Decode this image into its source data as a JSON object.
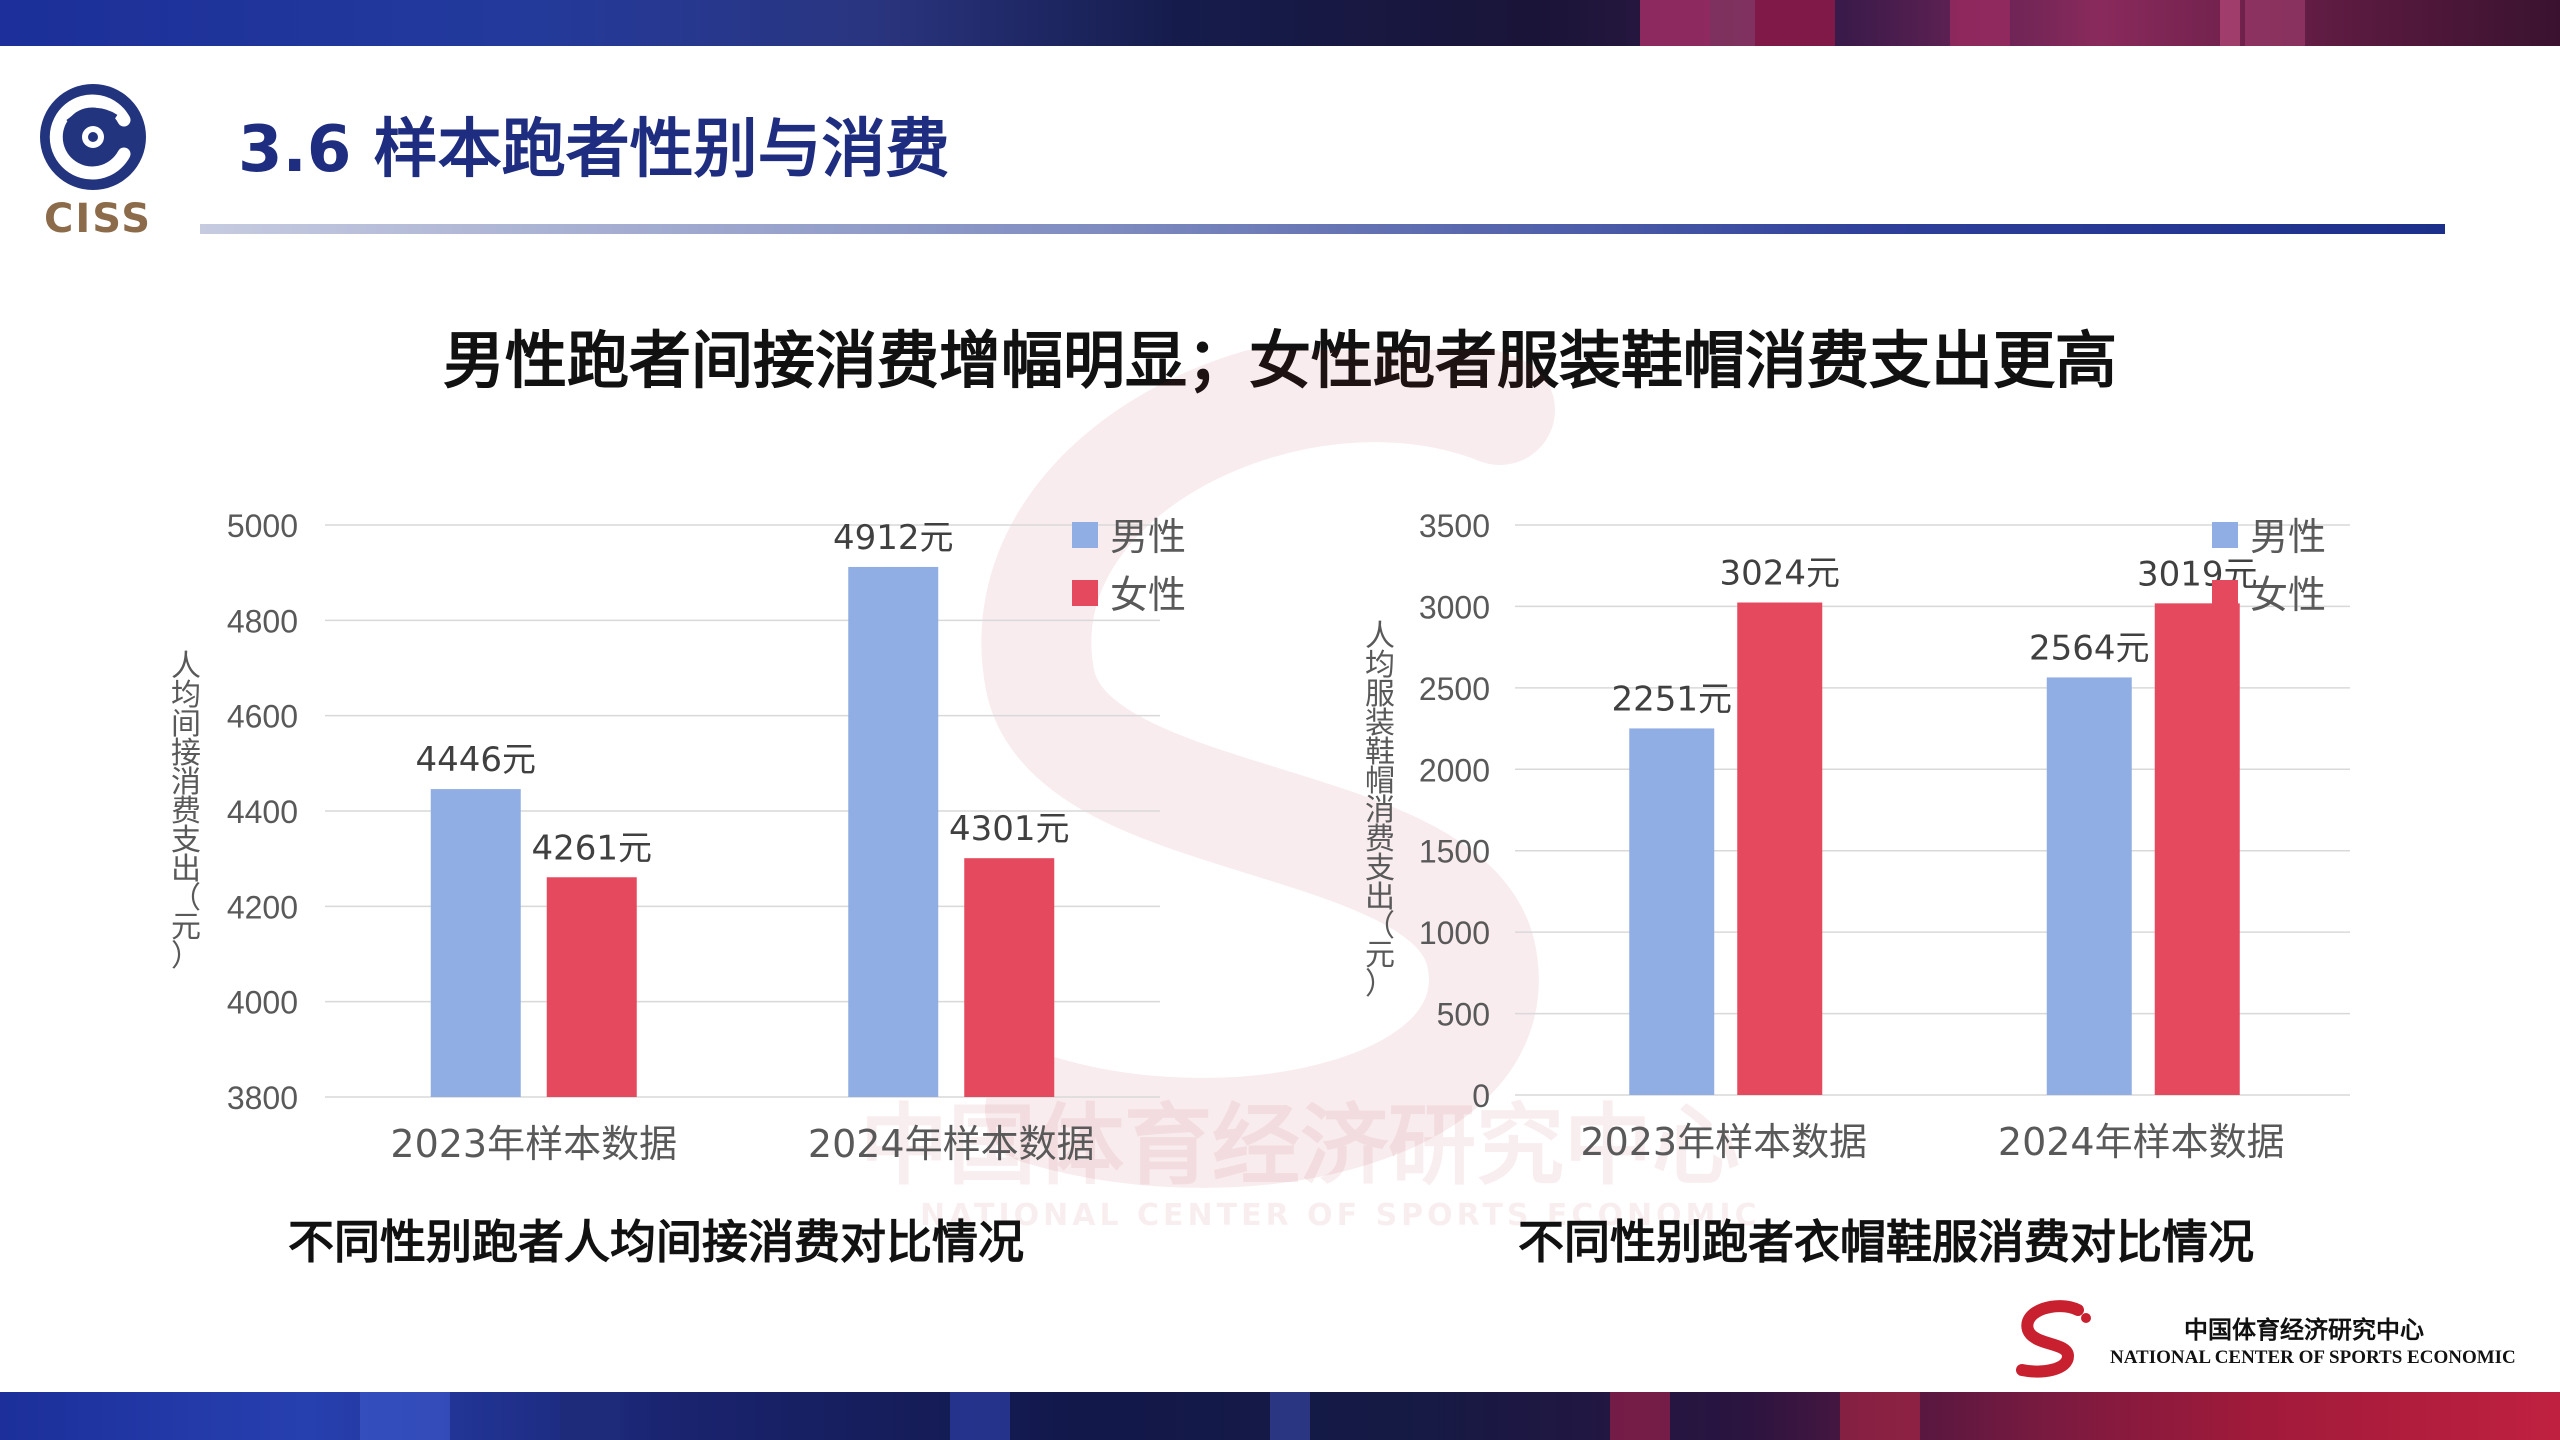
{
  "header": {
    "logo_text": "CISS",
    "page_title": "3.6 样本跑者性别与消费"
  },
  "subtitle": "男性跑者间接消费增幅明显；女性跑者服装鞋帽消费支出更高",
  "colors": {
    "male": "#91aee4",
    "female": "#e5495d",
    "title": "#1f2d80",
    "axis_text": "#595959"
  },
  "chart_data": [
    {
      "type": "bar",
      "categories": [
        "2023年样本数据",
        "2024年样本数据"
      ],
      "series": [
        {
          "name": "男性",
          "values": [
            4446,
            4912
          ]
        },
        {
          "name": "女性",
          "values": [
            4261,
            4301
          ]
        }
      ],
      "data_labels": [
        [
          "4446元",
          "4912元"
        ],
        [
          "4261元",
          "4301元"
        ]
      ],
      "ylabel": "人均间接消费支出（元）",
      "ylim": [
        3800,
        5000
      ],
      "yticks": [
        3800,
        4000,
        4200,
        4400,
        4600,
        4800,
        5000
      ],
      "grid": true,
      "legend": "top-right",
      "caption": "不同性别跑者人均间接消费对比情况"
    },
    {
      "type": "bar",
      "categories": [
        "2023年样本数据",
        "2024年样本数据"
      ],
      "series": [
        {
          "name": "男性",
          "values": [
            2251,
            2564
          ]
        },
        {
          "name": "女性",
          "values": [
            3024,
            3019
          ]
        }
      ],
      "data_labels": [
        [
          "2251元",
          "2564元"
        ],
        [
          "3024元",
          "3019元"
        ]
      ],
      "ylabel": "人均服装鞋帽消费支出（元）",
      "ylim": [
        0,
        3500
      ],
      "yticks": [
        0,
        500,
        1000,
        1500,
        2000,
        2500,
        3000,
        3500
      ],
      "grid": true,
      "legend": "top-right",
      "caption": "不同性别跑者衣帽鞋服消费对比情况"
    }
  ],
  "watermark": {
    "cn": "中国体育经济研究中心",
    "en": "NATIONAL CENTER OF SPORTS ECONOMIC"
  },
  "footer": {
    "org_cn": "中国体育经济研究中心",
    "org_en": "NATIONAL CENTER OF SPORTS ECONOMIC"
  }
}
